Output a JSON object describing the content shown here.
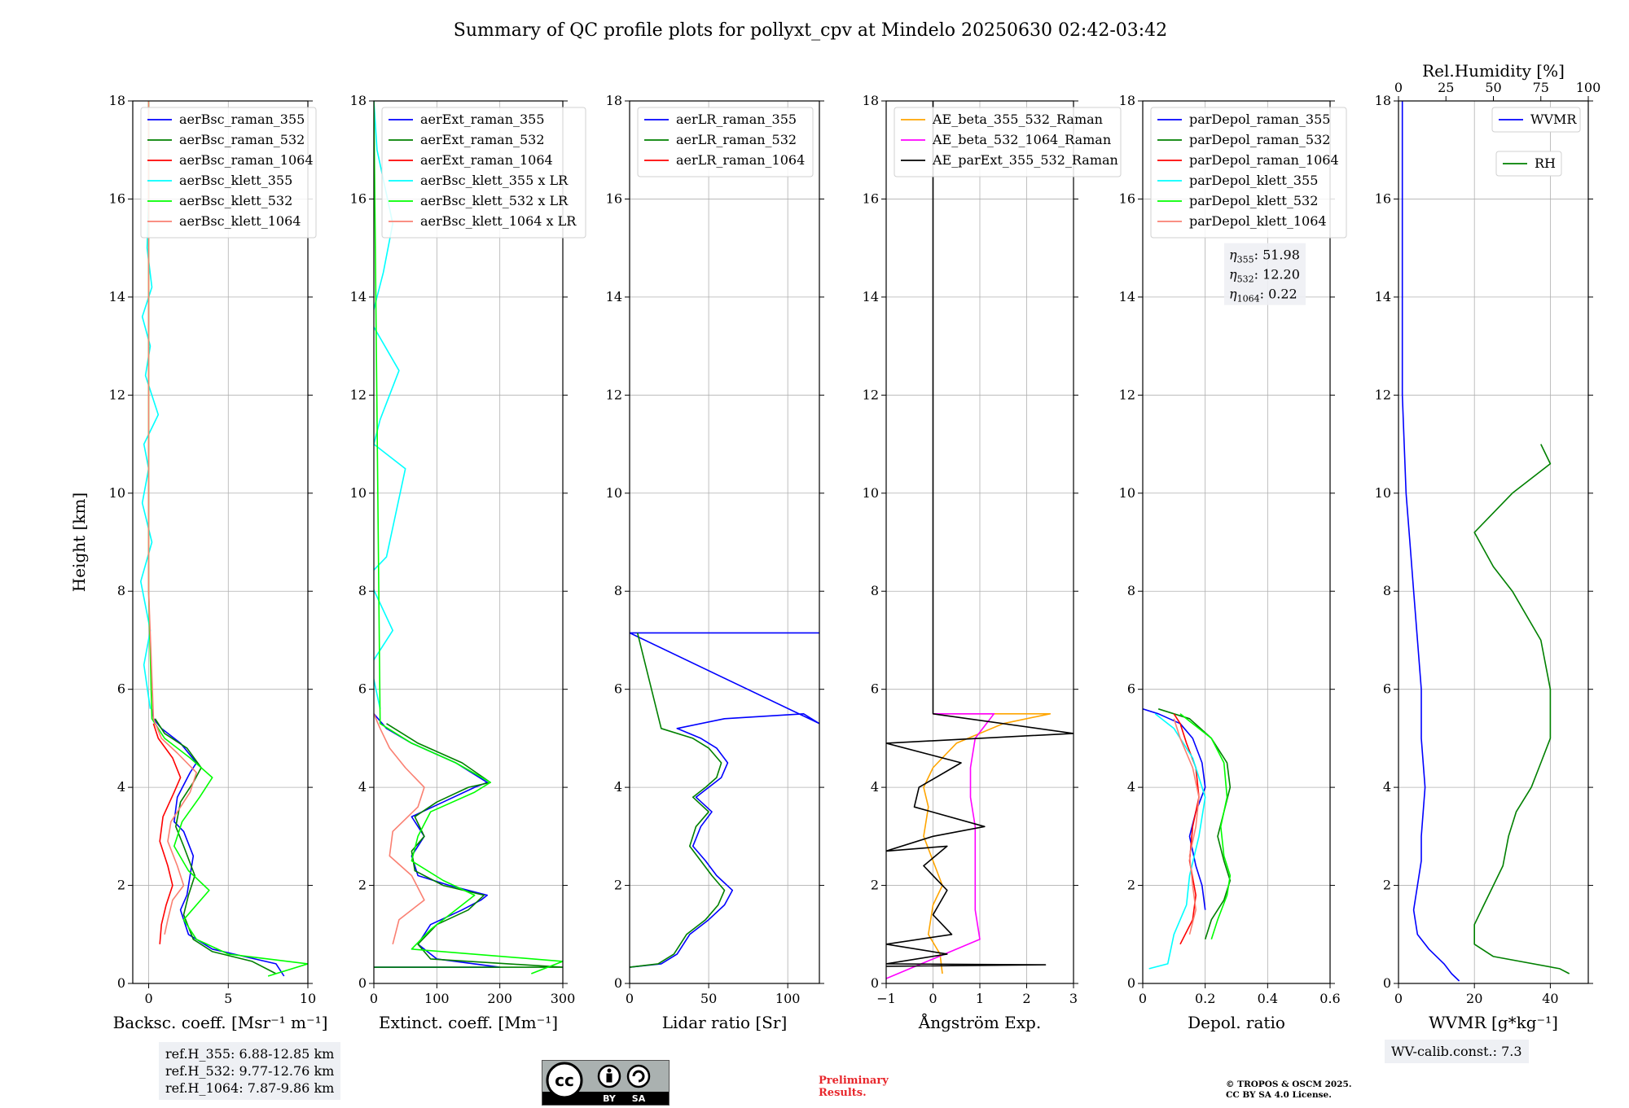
{
  "title": "Summary of QC profile plots for pollyxt_cpv at Mindelo 20250630 02:42-03:42",
  "colors": {
    "blue": "#0000ff",
    "green": "#008000",
    "red": "#ff0000",
    "cyan": "#00ffff",
    "lime": "#00ff00",
    "salmon": "#fa8072",
    "orange": "#ffa500",
    "magenta": "#ff00ff",
    "black": "#000000"
  },
  "reference_heights": [
    "ref.H_355: 6.88-12.85 km",
    "ref.H_532: 9.77-12.76 km",
    "ref.H_1064: 7.87-9.86 km"
  ],
  "wv_calib": "WV-calib.const.: 7.3",
  "preliminary": [
    "Preliminary",
    "Results."
  ],
  "copyright": [
    "© TROPOS & OSCM 2025.",
    "CC BY SA 4.0 License."
  ],
  "license_badge": {
    "cc": "cc",
    "by": "BY",
    "sa": "SA",
    "icon": "cc-by-sa-icon"
  },
  "chart_data": [
    {
      "type": "line",
      "xlabel": "Backsc. coeff. [Msr⁻¹ m⁻¹]",
      "ylabel": "Height [km]",
      "xlim": [
        -1,
        10
      ],
      "ylim": [
        0,
        18
      ],
      "xticks": [
        0,
        5,
        10
      ],
      "yticks": [
        0,
        2,
        4,
        6,
        8,
        10,
        12,
        14,
        16,
        18
      ],
      "grid": true,
      "legend_placement": "upper-left",
      "series": [
        {
          "name": "aerBsc_raman_355",
          "color": "blue",
          "x": [
            8.5,
            8,
            6,
            4,
            2.5,
            2.0,
            2.4,
            2.8,
            2.2,
            1.6,
            1.8,
            2.6,
            3.0,
            2.0,
            0.8,
            0.3,
            0.2
          ],
          "y": [
            0.15,
            0.4,
            0.55,
            0.7,
            1.0,
            1.5,
            1.8,
            2.6,
            3.1,
            3.3,
            3.8,
            4.3,
            4.5,
            4.9,
            5.2,
            5.4,
            5.6
          ]
        },
        {
          "name": "aerBsc_raman_532",
          "color": "green",
          "x": [
            8.0,
            6.5,
            4,
            2.8,
            2.2,
            2.5,
            2.9,
            2.2,
            1.7,
            2.0,
            2.8,
            3.3,
            2.4,
            1.0,
            0.4
          ],
          "y": [
            0.2,
            0.45,
            0.65,
            0.9,
            1.4,
            1.8,
            2.2,
            2.8,
            3.2,
            3.7,
            4.1,
            4.4,
            4.8,
            5.1,
            5.4
          ]
        },
        {
          "name": "aerBsc_raman_1064",
          "color": "red",
          "x": [
            0.7,
            0.8,
            1.1,
            1.5,
            1.2,
            0.7,
            0.9,
            1.6,
            2.0,
            1.5,
            0.6,
            0.3
          ],
          "y": [
            0.8,
            1.2,
            1.6,
            2.0,
            2.4,
            2.9,
            3.4,
            3.9,
            4.2,
            4.6,
            5.0,
            5.3
          ]
        },
        {
          "name": "aerBsc_klett_355",
          "color": "cyan",
          "x": [
            0.1,
            -0.3,
            0.1,
            -0.5,
            0.2,
            -0.4,
            0.0,
            -0.3,
            0.6,
            -0.2,
            0.1,
            -0.4,
            0.2,
            -0.1,
            0.0,
            0.0
          ],
          "y": [
            5.6,
            6.5,
            7.2,
            8.2,
            9.0,
            9.8,
            10.5,
            11.0,
            11.6,
            12.4,
            13.0,
            13.6,
            14.2,
            15.0,
            16.0,
            18.0
          ]
        },
        {
          "name": "aerBsc_klett_532",
          "color": "lime",
          "x": [
            7.5,
            10,
            5,
            3,
            2.2,
            3.8,
            2.5,
            1.6,
            2.1,
            3.2,
            4.0,
            2.6,
            1.0,
            0.2,
            0.0,
            0.0
          ],
          "y": [
            0.15,
            0.4,
            0.6,
            0.9,
            1.3,
            1.9,
            2.3,
            2.8,
            3.3,
            3.8,
            4.2,
            4.6,
            5.0,
            5.4,
            8.0,
            18.0
          ]
        },
        {
          "name": "aerBsc_klett_1064",
          "color": "salmon",
          "x": [
            1.0,
            1.2,
            1.5,
            2.2,
            1.8,
            1.2,
            1.4,
            2.6,
            3.0,
            1.8,
            0.8,
            0.3,
            0.0,
            0.0
          ],
          "y": [
            1.0,
            1.3,
            1.7,
            2.0,
            2.4,
            2.9,
            3.3,
            3.9,
            4.3,
            4.7,
            5.0,
            5.4,
            8.0,
            18.0
          ]
        }
      ]
    },
    {
      "type": "line",
      "xlabel": "Extinct. coeff. [Mm⁻¹]",
      "ylabel": "",
      "xlim": [
        0,
        300
      ],
      "ylim": [
        0,
        18
      ],
      "xticks": [
        0,
        100,
        200,
        300
      ],
      "yticks": [
        0,
        2,
        4,
        6,
        8,
        10,
        12,
        14,
        16,
        18
      ],
      "grid": true,
      "legend_placement": "upper-left",
      "series": [
        {
          "name": "aerExt_raman_355",
          "color": "blue",
          "x": [
            0,
            200,
            100,
            70,
            90,
            140,
            170,
            180,
            120,
            70,
            60,
            80,
            60,
            110,
            160,
            180,
            130,
            60,
            20,
            0
          ],
          "y": [
            0.33,
            0.33,
            0.5,
            0.8,
            1.2,
            1.5,
            1.7,
            1.8,
            2.0,
            2.2,
            2.6,
            3.0,
            3.4,
            3.7,
            4.0,
            4.1,
            4.5,
            4.9,
            5.2,
            5.5
          ]
        },
        {
          "name": "aerExt_raman_532",
          "color": "green",
          "x": [
            0,
            300,
            90,
            70,
            100,
            150,
            175,
            110,
            65,
            60,
            80,
            65,
            100,
            150,
            185,
            140,
            70,
            20
          ],
          "y": [
            0.33,
            0.33,
            0.5,
            0.8,
            1.2,
            1.5,
            1.8,
            2.0,
            2.3,
            2.7,
            3.0,
            3.4,
            3.7,
            4.0,
            4.1,
            4.5,
            4.9,
            5.3
          ]
        },
        {
          "name": "aerExt_raman_1064",
          "color": "red",
          "x": [],
          "y": []
        },
        {
          "name": "aerBsc_klett_355 x LR",
          "color": "cyan",
          "x": [
            10,
            -5,
            30,
            -10,
            20,
            50,
            0,
            10,
            40,
            -5,
            15,
            30,
            5,
            0
          ],
          "y": [
            5.6,
            6.5,
            7.2,
            8.3,
            8.7,
            10.5,
            11.0,
            11.5,
            12.5,
            13.5,
            14.5,
            15.5,
            17.0,
            18.0
          ]
        },
        {
          "name": "aerBsc_klett_532 x LR",
          "color": "lime",
          "x": [
            250,
            300,
            60,
            90,
            130,
            160,
            110,
            60,
            70,
            90,
            160,
            185,
            130,
            60,
            10,
            0
          ],
          "y": [
            0.2,
            0.45,
            0.7,
            1.1,
            1.5,
            1.8,
            2.1,
            2.5,
            3.0,
            3.5,
            3.9,
            4.1,
            4.5,
            4.9,
            5.3,
            18.0
          ]
        },
        {
          "name": "aerBsc_klett_1064 x LR",
          "color": "salmon",
          "x": [
            30,
            40,
            80,
            60,
            25,
            30,
            70,
            80,
            50,
            25,
            10,
            0
          ],
          "y": [
            0.8,
            1.3,
            1.7,
            2.2,
            2.6,
            3.1,
            3.6,
            4.0,
            4.4,
            4.8,
            5.2,
            5.5
          ]
        }
      ]
    },
    {
      "type": "line",
      "xlabel": "Lidar ratio [Sr]",
      "ylabel": "",
      "xlim": [
        0,
        120
      ],
      "ylim": [
        0,
        18
      ],
      "xticks": [
        0,
        50,
        100
      ],
      "yticks": [
        0,
        2,
        4,
        6,
        8,
        10,
        12,
        14,
        16,
        18
      ],
      "grid": true,
      "legend_placement": "upper-left",
      "series": [
        {
          "name": "aerLR_raman_355",
          "color": "blue",
          "x": [
            0,
            20,
            30,
            38,
            50,
            60,
            65,
            55,
            48,
            40,
            45,
            52,
            42,
            50,
            58,
            62,
            55,
            45,
            30,
            60,
            110,
            120,
            0,
            120
          ],
          "y": [
            0.33,
            0.4,
            0.6,
            1.0,
            1.3,
            1.6,
            1.9,
            2.2,
            2.5,
            2.8,
            3.2,
            3.5,
            3.8,
            4.0,
            4.2,
            4.5,
            4.8,
            5.0,
            5.2,
            5.4,
            5.5,
            5.3,
            7.15,
            7.15
          ]
        },
        {
          "name": "aerLR_raman_532",
          "color": "green",
          "x": [
            0,
            18,
            28,
            36,
            48,
            56,
            60,
            52,
            45,
            38,
            42,
            50,
            40,
            48,
            55,
            58,
            50,
            40,
            20,
            5
          ],
          "y": [
            0.33,
            0.4,
            0.6,
            1.0,
            1.3,
            1.6,
            1.9,
            2.2,
            2.5,
            2.8,
            3.2,
            3.5,
            3.8,
            4.0,
            4.2,
            4.5,
            4.8,
            5.0,
            5.2,
            7.15
          ]
        },
        {
          "name": "aerLR_raman_1064",
          "color": "red",
          "x": [],
          "y": []
        }
      ]
    },
    {
      "type": "line",
      "xlabel": "Ångström Exp.",
      "ylabel": "",
      "xlim": [
        -1,
        3
      ],
      "ylim": [
        0,
        18
      ],
      "xticks": [
        -1,
        0,
        1,
        2,
        3
      ],
      "yticks": [
        0,
        2,
        4,
        6,
        8,
        10,
        12,
        14,
        16,
        18
      ],
      "grid": true,
      "legend_placement": "upper-left",
      "series": [
        {
          "name": "AE_beta_355_532_Raman",
          "color": "orange",
          "x": [
            0.2,
            0.15,
            -0.1,
            0.0,
            0.2,
            0.0,
            -0.2,
            -0.1,
            -0.2,
            0.0,
            0.5,
            1.5,
            2.5,
            0.0
          ],
          "y": [
            0.2,
            0.6,
            1.0,
            1.6,
            2.0,
            2.5,
            3.0,
            3.6,
            4.0,
            4.4,
            4.9,
            5.3,
            5.5,
            5.5
          ]
        },
        {
          "name": "AE_beta_532_1064_Raman",
          "color": "magenta",
          "x": [
            -1,
            1.0,
            0.9,
            0.9,
            0.9,
            0.9,
            0.8,
            0.8,
            0.9,
            1.3,
            0.0
          ],
          "y": [
            0.1,
            0.9,
            1.5,
            2.0,
            2.6,
            3.2,
            3.8,
            4.4,
            5.0,
            5.5,
            5.5
          ]
        },
        {
          "name": "AE_parExt_355_532_Raman",
          "color": "black",
          "x": [
            -1,
            2.4,
            -1,
            0.3,
            -1,
            0.4,
            0.0,
            0.3,
            -0.2,
            0.3,
            -1,
            0.0,
            1.1,
            -0.4,
            -0.3,
            0.6,
            -1,
            3.0,
            0.0,
            0.0
          ],
          "y": [
            0.35,
            0.38,
            0.4,
            0.6,
            0.8,
            1.0,
            1.4,
            1.9,
            2.4,
            2.8,
            2.7,
            3.0,
            3.2,
            3.6,
            4.0,
            4.5,
            4.9,
            5.1,
            5.5,
            18.0
          ]
        }
      ]
    },
    {
      "type": "line",
      "xlabel": "Depol. ratio",
      "ylabel": "",
      "xlim": [
        0,
        0.6
      ],
      "ylim": [
        0,
        18
      ],
      "xticks": [
        0,
        0.2,
        0.4,
        0.6
      ],
      "yticks": [
        0,
        2,
        4,
        6,
        8,
        10,
        12,
        14,
        16,
        18
      ],
      "grid": true,
      "legend_placement": "upper-left",
      "annotation": {
        "eta_355": "51.98",
        "eta_532": "12.20",
        "eta_1064": "0.22"
      },
      "series": [
        {
          "name": "parDepol_raman_355",
          "color": "blue",
          "x": [
            0.2,
            0.19,
            0.17,
            0.15,
            0.17,
            0.2,
            0.19,
            0.16,
            0.12,
            0.05,
            0.0
          ],
          "y": [
            1.5,
            2.0,
            2.4,
            3.0,
            3.5,
            4.0,
            4.5,
            5.0,
            5.3,
            5.5,
            5.6
          ]
        },
        {
          "name": "parDepol_raman_532",
          "color": "green",
          "x": [
            0.2,
            0.22,
            0.26,
            0.28,
            0.26,
            0.24,
            0.26,
            0.28,
            0.27,
            0.22,
            0.15,
            0.05
          ],
          "y": [
            0.9,
            1.3,
            1.7,
            2.1,
            2.5,
            3.0,
            3.5,
            4.0,
            4.5,
            5.0,
            5.4,
            5.6
          ]
        },
        {
          "name": "parDepol_raman_1064",
          "color": "red",
          "x": [
            0.12,
            0.16,
            0.17,
            0.15,
            0.16,
            0.18,
            0.17,
            0.14,
            0.12,
            0.1
          ],
          "y": [
            0.8,
            1.3,
            1.8,
            2.5,
            3.2,
            3.8,
            4.4,
            4.9,
            5.3,
            5.5
          ]
        },
        {
          "name": "parDepol_klett_355",
          "color": "cyan",
          "x": [
            0.02,
            0.08,
            0.1,
            0.14,
            0.15,
            0.18,
            0.2,
            0.16,
            0.1,
            0.04
          ],
          "y": [
            0.3,
            0.4,
            1.0,
            1.6,
            2.2,
            3.0,
            3.8,
            4.6,
            5.2,
            5.5
          ]
        },
        {
          "name": "parDepol_klett_532",
          "color": "lime",
          "x": [
            0.22,
            0.24,
            0.27,
            0.28,
            0.26,
            0.25,
            0.27,
            0.26,
            0.22,
            0.12
          ],
          "y": [
            0.9,
            1.3,
            1.8,
            2.2,
            2.6,
            3.2,
            3.8,
            4.5,
            5.0,
            5.5
          ]
        },
        {
          "name": "parDepol_klett_1064",
          "color": "salmon",
          "x": [
            0.15,
            0.17,
            0.16,
            0.15,
            0.17,
            0.18,
            0.16,
            0.12,
            0.1
          ],
          "y": [
            1.0,
            1.5,
            2.0,
            2.6,
            3.2,
            3.8,
            4.4,
            5.0,
            5.4
          ]
        }
      ]
    },
    {
      "type": "line",
      "xlabel": "WVMR [g*kg⁻¹]",
      "ylabel": "",
      "x2label": "Rel.Humidity [%]",
      "xlim": [
        0,
        50
      ],
      "ylim": [
        0,
        18
      ],
      "x2lim": [
        0,
        100
      ],
      "xticks": [
        0,
        20,
        40
      ],
      "x2ticks": [
        0,
        25,
        50,
        75,
        100
      ],
      "yticks": [
        0,
        2,
        4,
        6,
        8,
        10,
        12,
        14,
        16,
        18
      ],
      "grid": true,
      "legend_placement": "upper-right",
      "series": [
        {
          "name": "WVMR",
          "color": "blue",
          "axis": "x",
          "x": [
            16,
            14,
            12,
            8,
            5,
            4,
            5,
            6,
            6,
            7,
            6,
            6,
            5,
            4,
            3,
            2,
            1,
            1,
            1,
            1
          ],
          "y": [
            0.05,
            0.2,
            0.4,
            0.7,
            1.0,
            1.5,
            2.0,
            2.5,
            3.0,
            4.0,
            5.0,
            6.0,
            7.0,
            8.0,
            9.0,
            10.0,
            12.0,
            14.0,
            16.0,
            18.0
          ]
        },
        {
          "name": "RH",
          "color": "green",
          "axis": "x2",
          "x": [
            90,
            85,
            50,
            40,
            40,
            45,
            50,
            55,
            58,
            62,
            70,
            75,
            80,
            80,
            75,
            60,
            50,
            40,
            60,
            80,
            75
          ],
          "y": [
            0.2,
            0.3,
            0.55,
            0.8,
            1.2,
            1.6,
            2.0,
            2.4,
            3.0,
            3.5,
            4.0,
            4.5,
            5.0,
            6.0,
            7.0,
            8.0,
            8.5,
            9.2,
            10.0,
            10.6,
            11.0
          ]
        }
      ]
    }
  ]
}
